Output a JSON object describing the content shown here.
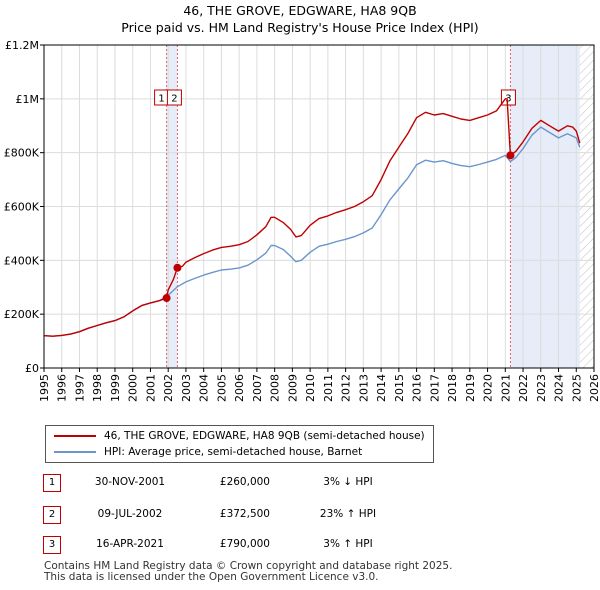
{
  "header": {
    "title_line1": "46, THE GROVE, EDGWARE, HA8 9QB",
    "title_line2": "Price paid vs. HM Land Registry's House Price Index (HPI)"
  },
  "chart_data": {
    "type": "line",
    "xlim": [
      1995,
      2026
    ],
    "ylim": [
      0,
      1200000
    ],
    "y_ticks": [
      0,
      200000,
      400000,
      600000,
      800000,
      1000000,
      1200000
    ],
    "y_tick_labels": [
      "£0",
      "£200K",
      "£400K",
      "£600K",
      "£800K",
      "£1M",
      "£1.2M"
    ],
    "x_ticks": [
      1995,
      1996,
      1997,
      1998,
      1999,
      2000,
      2001,
      2002,
      2003,
      2004,
      2005,
      2006,
      2007,
      2008,
      2009,
      2010,
      2011,
      2012,
      2013,
      2014,
      2015,
      2016,
      2017,
      2018,
      2019,
      2020,
      2021,
      2022,
      2023,
      2024,
      2025,
      2026
    ],
    "x_tick_labels": [
      "1995",
      "1996",
      "1997",
      "1998",
      "1999",
      "2000",
      "2001",
      "2002",
      "2003",
      "2004",
      "2005",
      "2006",
      "2007",
      "2008",
      "2009",
      "2010",
      "2011",
      "2012",
      "2013",
      "2014",
      "2015",
      "2016",
      "2017",
      "2018",
      "2019",
      "2020",
      "2021",
      "2022",
      "2023",
      "2024",
      "2025",
      "2026"
    ],
    "grid": true,
    "series": [
      {
        "name": "46, THE GROVE, EDGWARE, HA8 9QB (semi-detached house)",
        "color": "#c00000",
        "x": [
          1995.0,
          1995.5,
          1996.0,
          1996.5,
          1997.0,
          1997.5,
          1998.0,
          1998.5,
          1999.0,
          1999.5,
          2000.0,
          2000.5,
          2001.0,
          2001.5,
          2001.91,
          2002.0,
          2002.3,
          2002.52,
          2002.8,
          2003.0,
          2003.5,
          2004.0,
          2004.5,
          2005.0,
          2005.5,
          2006.0,
          2006.5,
          2007.0,
          2007.5,
          2007.8,
          2008.0,
          2008.5,
          2008.9,
          2009.2,
          2009.5,
          2010.0,
          2010.5,
          2011.0,
          2011.5,
          2012.0,
          2012.5,
          2013.0,
          2013.5,
          2014.0,
          2014.5,
          2015.0,
          2015.5,
          2016.0,
          2016.5,
          2017.0,
          2017.5,
          2018.0,
          2018.5,
          2019.0,
          2019.5,
          2020.0,
          2020.5,
          2021.0,
          2021.1,
          2021.29,
          2021.6,
          2022.0,
          2022.5,
          2023.0,
          2023.5,
          2024.0,
          2024.5,
          2024.8,
          2025.0,
          2025.2
        ],
        "values": [
          120000,
          118000,
          121000,
          126000,
          135000,
          148000,
          158000,
          168000,
          176000,
          190000,
          212000,
          232000,
          242000,
          250000,
          260000,
          290000,
          330000,
          372500,
          378000,
          393000,
          410000,
          425000,
          438000,
          448000,
          452000,
          458000,
          470000,
          495000,
          525000,
          560000,
          560000,
          540000,
          515000,
          487000,
          492000,
          530000,
          555000,
          565000,
          578000,
          588000,
          600000,
          618000,
          640000,
          700000,
          770000,
          820000,
          870000,
          930000,
          950000,
          940000,
          945000,
          935000,
          925000,
          920000,
          930000,
          940000,
          955000,
          1000000,
          1000000,
          790000,
          805000,
          840000,
          890000,
          920000,
          900000,
          880000,
          900000,
          895000,
          880000,
          835000
        ]
      },
      {
        "name": "HPI: Average price, semi-detached house, Barnet",
        "color": "#6a96cc",
        "x": [
          1995.0,
          1995.5,
          1996.0,
          1996.5,
          1997.0,
          1997.5,
          1998.0,
          1998.5,
          1999.0,
          1999.5,
          2000.0,
          2000.5,
          2001.0,
          2001.5,
          2001.91,
          2002.0,
          2002.52,
          2003.0,
          2003.5,
          2004.0,
          2004.5,
          2005.0,
          2005.5,
          2006.0,
          2006.5,
          2007.0,
          2007.5,
          2007.8,
          2008.0,
          2008.5,
          2008.9,
          2009.2,
          2009.5,
          2010.0,
          2010.5,
          2011.0,
          2011.5,
          2012.0,
          2012.5,
          2013.0,
          2013.5,
          2014.0,
          2014.5,
          2015.0,
          2015.5,
          2016.0,
          2016.5,
          2017.0,
          2017.5,
          2018.0,
          2018.5,
          2019.0,
          2019.5,
          2020.0,
          2020.5,
          2021.0,
          2021.29,
          2021.6,
          2022.0,
          2022.5,
          2023.0,
          2023.5,
          2024.0,
          2024.5,
          2025.0,
          2025.2
        ],
        "values": [
          120000,
          118000,
          121000,
          126000,
          135000,
          148000,
          158000,
          168000,
          176000,
          190000,
          212000,
          232000,
          242000,
          250000,
          266000,
          270000,
          302000,
          320000,
          333000,
          345000,
          355000,
          364000,
          367000,
          372000,
          382000,
          402000,
          427000,
          455000,
          455000,
          440000,
          415000,
          395000,
          400000,
          430000,
          452000,
          460000,
          470000,
          478000,
          488000,
          502000,
          520000,
          570000,
          625000,
          665000,
          705000,
          755000,
          772000,
          765000,
          770000,
          760000,
          752000,
          748000,
          756000,
          765000,
          775000,
          790000,
          767000,
          782000,
          815000,
          865000,
          895000,
          875000,
          855000,
          870000,
          855000,
          820000
        ]
      }
    ],
    "transactions": [
      {
        "id": "1",
        "x": 2001.91,
        "price": 260000,
        "date": "30-NOV-2001",
        "price_label": "£260,000",
        "hpi": "3% ↓ HPI"
      },
      {
        "id": "2",
        "x": 2002.52,
        "price": 372500,
        "date": "09-JUL-2002",
        "price_label": "£372,500",
        "hpi": "23% ↑ HPI"
      },
      {
        "id": "3",
        "x": 2021.29,
        "price": 790000,
        "date": "16-APR-2021",
        "price_label": "£790,000",
        "hpi": "3% ↑ HPI"
      }
    ],
    "shaded_ranges": [
      {
        "from": 2001.91,
        "to": 2002.52
      },
      {
        "from": 2021.29,
        "to": 2025.2
      }
    ],
    "hatched_from": 2025.2
  },
  "legend": {
    "items": [
      {
        "label": "46, THE GROVE, EDGWARE, HA8 9QB (semi-detached house)",
        "color": "#c00000"
      },
      {
        "label": "HPI: Average price, semi-detached house, Barnet",
        "color": "#6a96cc"
      }
    ]
  },
  "table": {
    "rows": [
      {
        "num": "1",
        "date": "30-NOV-2001",
        "price": "£260,000",
        "hpi": "3% ↓ HPI"
      },
      {
        "num": "2",
        "date": "09-JUL-2002",
        "price": "£372,500",
        "hpi": "23% ↑ HPI"
      },
      {
        "num": "3",
        "date": "16-APR-2021",
        "price": "£790,000",
        "hpi": "3% ↑ HPI"
      }
    ]
  },
  "footer": {
    "line1": "Contains HM Land Registry data © Crown copyright and database right 2025.",
    "line2": "This data is licensed under the Open Government Licence v3.0."
  }
}
